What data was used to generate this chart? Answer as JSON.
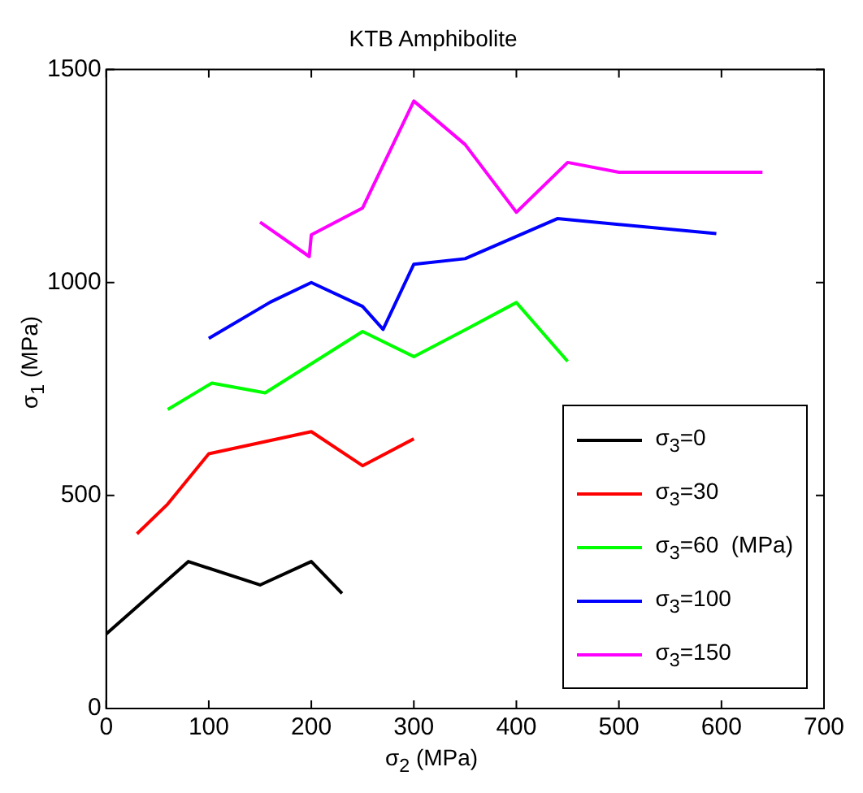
{
  "chart_data": {
    "type": "line",
    "title": "KTB Amphibolite",
    "xlabel": "σ$_{2}$ (MPa)",
    "ylabel": "σ$_{1}$ (MPa)",
    "xlim": [
      0,
      700
    ],
    "xticks": [
      0,
      100,
      200,
      300,
      400,
      500,
      600,
      700
    ],
    "ylim": [
      0,
      1500
    ],
    "yticks": [
      0,
      500,
      1000,
      1500
    ],
    "grid": false,
    "legend": "bottom right",
    "series": [
      {
        "name": "σ$_{3}$=0",
        "color": "#000000",
        "x": [
          0,
          80,
          150,
          200,
          230
        ],
        "values": [
          175,
          345,
          290,
          345,
          270
        ]
      },
      {
        "name": "σ$_{3}$=30",
        "color": "#ff0000",
        "x": [
          30,
          60,
          100,
          200,
          250,
          300
        ],
        "values": [
          410,
          480,
          598,
          650,
          570,
          633
        ]
      },
      {
        "name": "σ$_{3}$=60  (MPa)",
        "color": "#00ff00",
        "x": [
          60,
          103,
          155,
          250,
          300,
          350,
          400,
          450
        ],
        "values": [
          702,
          764,
          741,
          885,
          826,
          889,
          953,
          815
        ]
      },
      {
        "name": "σ$_{3}$=100",
        "color": "#0000ff",
        "x": [
          100,
          160,
          200,
          250,
          270,
          300,
          350,
          440,
          595
        ],
        "values": [
          869,
          954,
          1000,
          944,
          890,
          1043,
          1056,
          1150,
          1115
        ]
      },
      {
        "name": "σ$_{3}$=150",
        "color": "#ff00ff",
        "x": [
          150,
          198,
          200,
          250,
          300,
          350,
          400,
          450,
          500,
          640
        ],
        "values": [
          1142,
          1061,
          1112,
          1175,
          1426,
          1324,
          1165,
          1282,
          1259,
          1259
        ]
      }
    ]
  }
}
